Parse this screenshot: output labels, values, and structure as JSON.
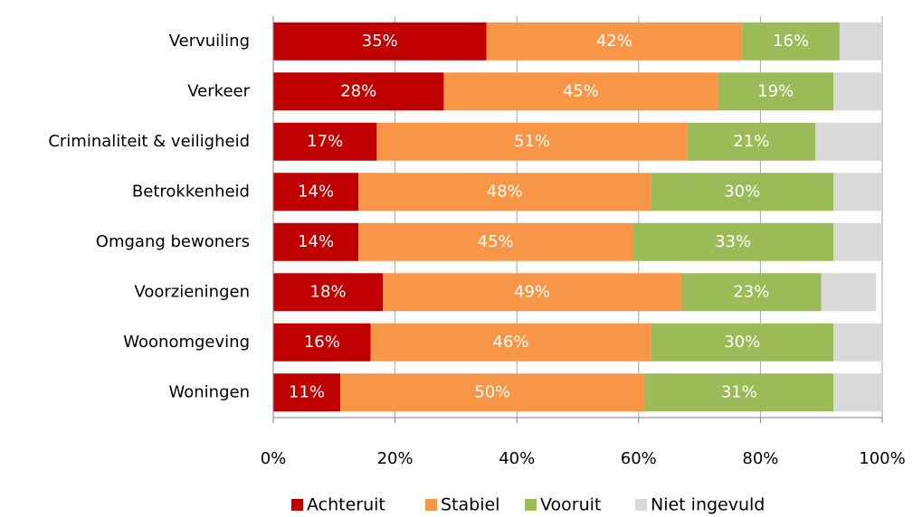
{
  "chart_data": {
    "type": "stacked_barh",
    "categories": [
      "Vervuiling",
      "Verkeer",
      "Criminaliteit & veiligheid",
      "Betrokkenheid",
      "Omgang bewoners",
      "Voorzieningen",
      "Woonomgeving",
      "Woningen"
    ],
    "series": [
      {
        "name": "Achteruit",
        "color": "#c00000",
        "values": [
          35,
          28,
          17,
          14,
          14,
          18,
          16,
          11
        ],
        "value_labels": [
          "35%",
          "28%",
          "17%",
          "14%",
          "14%",
          "18%",
          "16%",
          "11%"
        ]
      },
      {
        "name": "Stabiel",
        "color": "#f79646",
        "values": [
          42,
          45,
          51,
          48,
          45,
          49,
          46,
          50
        ],
        "value_labels": [
          "42%",
          "45%",
          "51%",
          "48%",
          "45%",
          "49%",
          "46%",
          "50%"
        ]
      },
      {
        "name": "Vooruit",
        "color": "#9bbb59",
        "values": [
          16,
          19,
          21,
          30,
          33,
          23,
          30,
          31
        ],
        "value_labels": [
          "16%",
          "19%",
          "21%",
          "30%",
          "33%",
          "23%",
          "30%",
          "31%"
        ]
      },
      {
        "name": "Niet ingevuld",
        "color": "#d9d9d9",
        "values": [
          7,
          8,
          11,
          8,
          8,
          9,
          8,
          8
        ]
      }
    ],
    "xlim": [
      0,
      100
    ],
    "xticks": [
      {
        "value": 0,
        "label": "0%"
      },
      {
        "value": 20,
        "label": "20%"
      },
      {
        "value": 40,
        "label": "40%"
      },
      {
        "value": 60,
        "label": "60%"
      },
      {
        "value": 80,
        "label": "80%"
      },
      {
        "value": 100,
        "label": "100%"
      }
    ],
    "grid": true,
    "legend": "bottom"
  }
}
